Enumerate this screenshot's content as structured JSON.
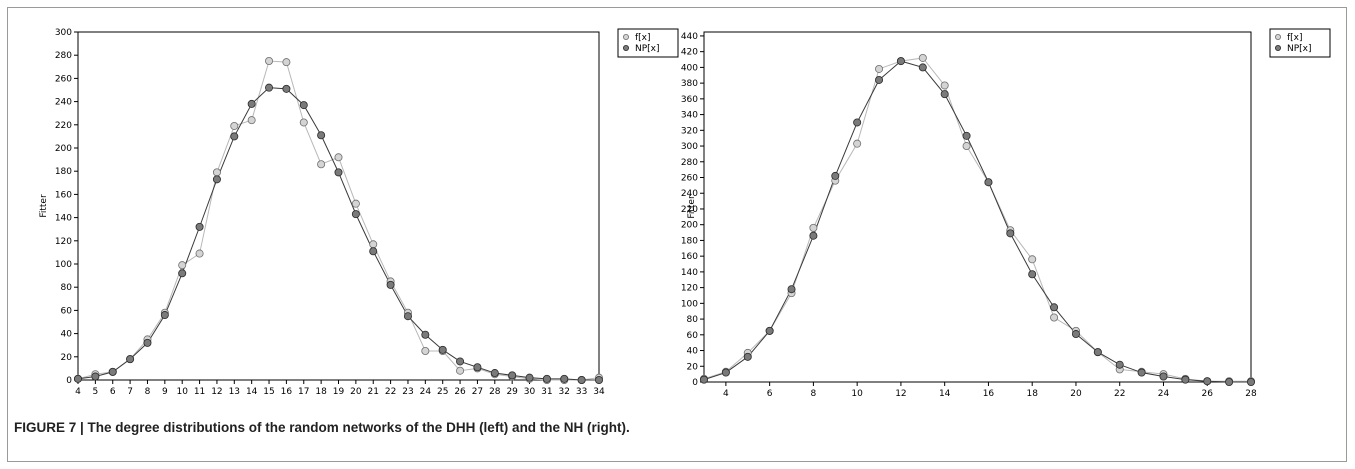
{
  "figure": {
    "caption": "FIGURE 7 | The degree distributions of the random networks of the DHH (left) and the NH (right)."
  },
  "chart_data": [
    {
      "type": "line",
      "ylabel": "Fitter",
      "xlim": [
        4,
        34
      ],
      "ylim": [
        0,
        300
      ],
      "xticks": [
        4,
        5,
        6,
        7,
        8,
        9,
        10,
        11,
        12,
        13,
        14,
        15,
        16,
        17,
        18,
        19,
        20,
        21,
        22,
        23,
        24,
        25,
        26,
        27,
        28,
        29,
        30,
        31,
        32,
        33,
        34
      ],
      "yticks": [
        0,
        20,
        40,
        60,
        80,
        100,
        120,
        140,
        160,
        180,
        200,
        220,
        240,
        260,
        280,
        300
      ],
      "grid": false,
      "legend": "top-right",
      "series": [
        {
          "name": "f[x]",
          "color": "#c8c8c8",
          "marker": "light-circle",
          "x": [
            4,
            5,
            6,
            7,
            8,
            9,
            10,
            11,
            12,
            13,
            14,
            15,
            16,
            17,
            18,
            19,
            20,
            21,
            22,
            23,
            24,
            25,
            26,
            27,
            28,
            29,
            30,
            31,
            32,
            33,
            34
          ],
          "y": [
            1,
            5,
            7,
            18,
            35,
            58,
            99,
            109,
            179,
            219,
            224,
            275,
            274,
            222,
            186,
            192,
            152,
            117,
            85,
            58,
            25,
            25,
            8,
            10,
            5,
            3,
            1,
            0,
            0,
            0,
            2
          ]
        },
        {
          "name": "NP[x]",
          "color": "#555555",
          "marker": "dark-circle",
          "x": [
            4,
            5,
            6,
            7,
            8,
            9,
            10,
            11,
            12,
            13,
            14,
            15,
            16,
            17,
            18,
            19,
            20,
            21,
            22,
            23,
            24,
            25,
            26,
            27,
            28,
            29,
            30,
            31,
            32,
            33,
            34
          ],
          "y": [
            1,
            3,
            7,
            18,
            32,
            56,
            92,
            132,
            173,
            210,
            238,
            252,
            251,
            237,
            211,
            179,
            143,
            111,
            82,
            55,
            39,
            26,
            16,
            11,
            6,
            4,
            2,
            1,
            1,
            0,
            0
          ]
        }
      ]
    },
    {
      "type": "line",
      "ylabel": "Fitter",
      "xlim": [
        3,
        28
      ],
      "ylim": [
        0,
        445
      ],
      "xticks": [
        4,
        6,
        8,
        10,
        12,
        14,
        16,
        18,
        20,
        22,
        24,
        26,
        28
      ],
      "yticks": [
        0,
        20,
        40,
        60,
        80,
        100,
        120,
        140,
        160,
        180,
        200,
        220,
        240,
        260,
        280,
        300,
        320,
        340,
        360,
        380,
        400,
        420,
        440
      ],
      "grid": false,
      "legend": "top-right",
      "series": [
        {
          "name": "f[x]",
          "color": "#c8c8c8",
          "marker": "light-circle",
          "x": [
            3,
            4,
            5,
            6,
            7,
            8,
            9,
            10,
            11,
            12,
            13,
            14,
            15,
            16,
            17,
            18,
            19,
            20,
            21,
            22,
            23,
            24,
            25,
            26,
            27,
            28
          ],
          "y": [
            4,
            13,
            37,
            65,
            113,
            196,
            256,
            303,
            398,
            408,
            412,
            377,
            300,
            254,
            193,
            156,
            82,
            65,
            38,
            16,
            13,
            10,
            4,
            1,
            1,
            1
          ]
        },
        {
          "name": "NP[x]",
          "color": "#555555",
          "marker": "dark-circle",
          "x": [
            3,
            4,
            5,
            6,
            7,
            8,
            9,
            10,
            11,
            12,
            13,
            14,
            15,
            16,
            17,
            18,
            19,
            20,
            21,
            22,
            23,
            24,
            25,
            26,
            27,
            28
          ],
          "y": [
            3,
            12,
            32,
            65,
            118,
            186,
            262,
            330,
            384,
            408,
            400,
            366,
            313,
            254,
            189,
            137,
            95,
            61,
            38,
            22,
            12,
            7,
            3,
            1,
            0,
            0
          ]
        }
      ]
    }
  ]
}
